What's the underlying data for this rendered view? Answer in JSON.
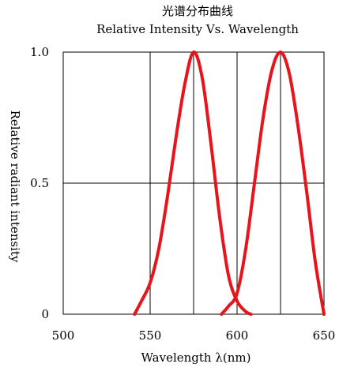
{
  "chart_data": {
    "type": "line",
    "title": "光谱分布曲线",
    "subtitle": "Relative Intensity Vs. Wavelength",
    "xlabel": "Wavelength λ(nm)",
    "ylabel": "Relative radiant intensity",
    "xlim": [
      500,
      650
    ],
    "ylim": [
      0,
      1.0
    ],
    "x_ticks": [
      500,
      550,
      600,
      650
    ],
    "x_tick_labels": [
      "500",
      "550",
      "600",
      "650"
    ],
    "y_ticks": [
      0,
      0.5,
      1.0
    ],
    "y_tick_labels": [
      "0",
      "0.5",
      "1.0"
    ],
    "x_grid": [
      550,
      575,
      600,
      625,
      650
    ],
    "y_grid": [
      0.5,
      1.0
    ],
    "grid": true,
    "line_color": "#e8141b",
    "grid_color": "#000000",
    "series": [
      {
        "values": [
          {
            "x": 541,
            "y": 0.0
          },
          {
            "x": 545,
            "y": 0.05
          },
          {
            "x": 550,
            "y": 0.12
          },
          {
            "x": 555,
            "y": 0.25
          },
          {
            "x": 560,
            "y": 0.45
          },
          {
            "x": 565,
            "y": 0.68
          },
          {
            "x": 570,
            "y": 0.88
          },
          {
            "x": 575,
            "y": 1.0
          },
          {
            "x": 580,
            "y": 0.9
          },
          {
            "x": 585,
            "y": 0.65
          },
          {
            "x": 590,
            "y": 0.37
          },
          {
            "x": 595,
            "y": 0.15
          },
          {
            "x": 600,
            "y": 0.05
          },
          {
            "x": 605,
            "y": 0.01
          },
          {
            "x": 608,
            "y": 0.0
          }
        ]
      },
      {
        "values": [
          {
            "x": 591,
            "y": 0.0
          },
          {
            "x": 595,
            "y": 0.03
          },
          {
            "x": 600,
            "y": 0.08
          },
          {
            "x": 605,
            "y": 0.25
          },
          {
            "x": 610,
            "y": 0.5
          },
          {
            "x": 615,
            "y": 0.75
          },
          {
            "x": 620,
            "y": 0.93
          },
          {
            "x": 625,
            "y": 1.0
          },
          {
            "x": 630,
            "y": 0.92
          },
          {
            "x": 635,
            "y": 0.72
          },
          {
            "x": 640,
            "y": 0.47
          },
          {
            "x": 645,
            "y": 0.2
          },
          {
            "x": 650,
            "y": 0.0
          }
        ]
      }
    ]
  }
}
